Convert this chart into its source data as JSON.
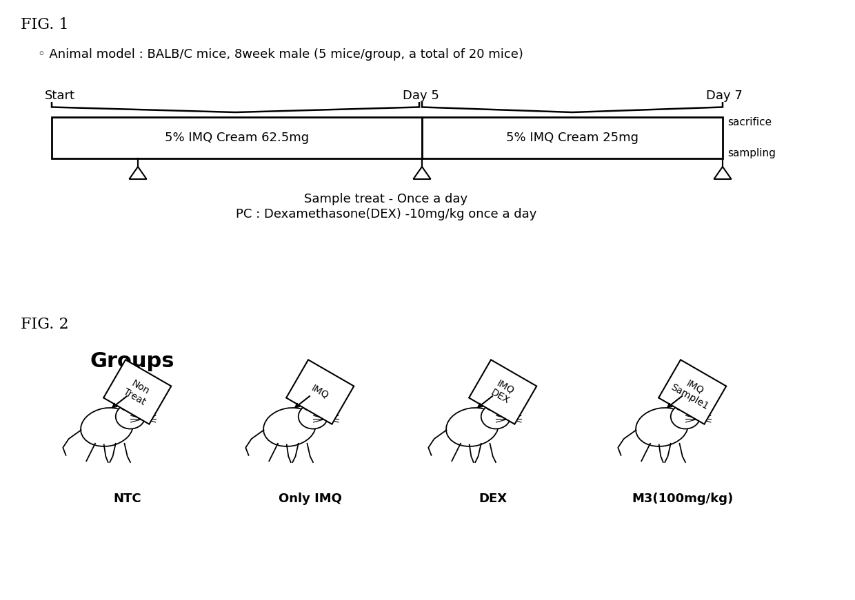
{
  "fig1_label": "FIG. 1",
  "fig2_label": "FIG. 2",
  "animal_model_text": "◦ Animal model : BALB/C mice, 8week male (5 mice/group, a total of 20 mice)",
  "start_label": "Start",
  "day5_label": "Day 5",
  "day7_label": "Day 7",
  "box1_text": "5% IMQ Cream 62.5mg",
  "box2_text": "5% IMQ Cream 25mg",
  "sacrifice_text": "sacrifice",
  "sampling_text": "sampling",
  "sample_treat_text": "Sample treat - Once a day",
  "pc_text": "PC : Dexamethasone(DEX) -10mg/kg once a day",
  "groups_title": "Groups",
  "group_labels": [
    "NTC",
    "Only IMQ",
    "DEX",
    "M3(100mg/kg)"
  ],
  "group_tags": [
    "Non\nTreat",
    "IMQ",
    "IMQ\nDEX",
    "IMQ\nSample1"
  ],
  "bg_color": "#ffffff",
  "box_color": "#ffffff",
  "box_edge_color": "#000000",
  "text_color": "#000000"
}
